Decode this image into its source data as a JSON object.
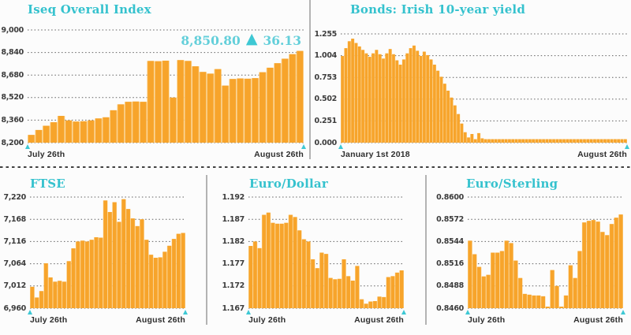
{
  "colors": {
    "bar": "#F7A42B",
    "bar_light": "#FBD28F",
    "title_teal": "#35C2CE",
    "annotation_teal": "#63CFDA",
    "triangle_teal": "#3EC8D4",
    "grid": "#606060",
    "axis_text": "#3C3C3C",
    "x_label_text": "#2E2E2E"
  },
  "chart_data": [
    {
      "type": "bar",
      "title": "Iseq Overall Index",
      "x_start_label": "July 26th",
      "x_end_label": "August 26th",
      "yticks": [
        "9,000",
        "8,840",
        "8,680",
        "8,520",
        "8,360",
        "8,200"
      ],
      "ylim": [
        8200,
        9000
      ],
      "grid": "dotted",
      "annotation": {
        "value": "8,850.80",
        "change": "36.13",
        "direction": "up"
      },
      "values": [
        8255,
        8290,
        8320,
        8345,
        8390,
        8358,
        8350,
        8352,
        8358,
        8372,
        8380,
        8430,
        8472,
        8490,
        8492,
        8490,
        8780,
        8778,
        8782,
        8520,
        8786,
        8780,
        8742,
        8702,
        8690,
        8722,
        8605,
        8652,
        8656,
        8654,
        8658,
        8700,
        8732,
        8764,
        8796,
        8828,
        8851
      ]
    },
    {
      "type": "bar",
      "title": "Bonds: Irish 10-year yield",
      "x_start_label": "January 1st 2018",
      "x_end_label": "August 26th",
      "yticks": [
        "1.255",
        "1.004",
        "0.753",
        "0.502",
        "0.251",
        "0.000"
      ],
      "ylim": [
        0,
        1.255
      ],
      "grid": "dotted",
      "values": [
        1.0,
        1.09,
        1.17,
        1.2,
        1.15,
        1.11,
        1.07,
        1.03,
        0.99,
        1.03,
        1.07,
        1.02,
        0.97,
        1.03,
        1.08,
        1.02,
        0.95,
        0.9,
        0.96,
        1.03,
        1.09,
        1.12,
        1.06,
        1.0,
        1.05,
        1.01,
        0.96,
        0.9,
        0.83,
        0.76,
        0.68,
        0.6,
        0.52,
        0.43,
        0.33,
        0.22,
        0.12,
        0.06,
        0.1,
        0.04,
        0.11,
        0.05,
        0.04,
        0.04,
        0.04,
        0.04,
        0.04,
        0.04,
        0.04,
        0.04,
        0.04,
        0.04,
        0.04,
        0.04,
        0.04,
        0.04,
        0.04,
        0.04,
        0.04,
        0.04,
        0.04,
        0.04,
        0.04,
        0.04,
        0.04,
        0.04,
        0.04,
        0.04,
        0.04,
        0.04,
        0.04,
        0.04,
        0.04,
        0.04,
        0.04,
        0.04,
        0.04,
        0.04,
        0.04,
        0.04,
        0.04,
        0.04,
        0.04,
        0.04
      ]
    },
    {
      "type": "bar",
      "title": "FTSE",
      "x_start_label": "July 26th",
      "x_end_label": "August 26th",
      "yticks": [
        "7,220",
        "7,168",
        "7,116",
        "7,064",
        "7,012",
        "6,960"
      ],
      "ylim": [
        6960,
        7220
      ],
      "grid": "dotted",
      "values": [
        7010,
        6985,
        7000,
        7065,
        7032,
        7022,
        7024,
        7022,
        7070,
        7100,
        7116,
        7118,
        7116,
        7120,
        7126,
        7125,
        7212,
        7185,
        7208,
        7162,
        7215,
        7192,
        7170,
        7152,
        7168,
        7120,
        7085,
        7078,
        7079,
        7092,
        7106,
        7122,
        7134,
        7136
      ]
    },
    {
      "type": "bar",
      "title": "Euro/Dollar",
      "x_start_label": "July 26th",
      "x_end_label": "August 26th",
      "yticks": [
        "1.192",
        "1.187",
        "1.182",
        "1.177",
        "1.172",
        "1.167"
      ],
      "ylim": [
        1.167,
        1.192
      ],
      "grid": "dotted",
      "values": [
        1.181,
        1.182,
        1.1805,
        1.188,
        1.1885,
        1.1862,
        1.186,
        1.186,
        1.1862,
        1.188,
        1.1875,
        1.1845,
        1.1825,
        1.182,
        1.178,
        1.176,
        1.1795,
        1.1792,
        1.1738,
        1.1735,
        1.1736,
        1.178,
        1.1742,
        1.1732,
        1.1765,
        1.169,
        1.168,
        1.1685,
        1.1686,
        1.1696,
        1.1695,
        1.174,
        1.1742,
        1.175,
        1.1755
      ]
    },
    {
      "type": "bar",
      "title": "Euro/Sterling",
      "x_start_label": "July 26th",
      "x_end_label": "August 26th",
      "yticks": [
        "0.8600",
        "0.8572",
        "0.8544",
        "0.8516",
        "0.8488",
        "0.8460"
      ],
      "ylim": [
        0.846,
        0.86
      ],
      "grid": "dotted",
      "values": [
        0.8545,
        0.8528,
        0.8512,
        0.85,
        0.8502,
        0.853,
        0.853,
        0.8532,
        0.8545,
        0.8542,
        0.852,
        0.8498,
        0.8478,
        0.8477,
        0.8476,
        0.8476,
        0.8475,
        0.8462,
        0.8508,
        0.8488,
        0.8462,
        0.8476,
        0.8514,
        0.8498,
        0.8532,
        0.8568,
        0.857,
        0.8571,
        0.8569,
        0.8556,
        0.8552,
        0.8566,
        0.8574,
        0.8578
      ]
    }
  ]
}
